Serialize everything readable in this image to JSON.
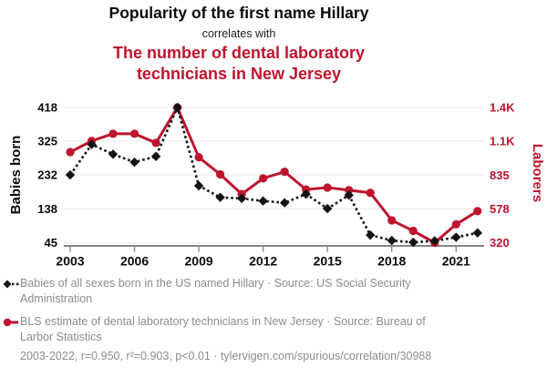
{
  "header": {
    "title_top": "Popularity of the first name Hillary",
    "connector": "correlates with",
    "title_bottom": "The number of dental laboratory technicians in New Jersey"
  },
  "colors": {
    "accent_red": "#be142d",
    "series_black": "#141414",
    "legend_gray": "#8c8c8c",
    "gridline": "#e8e8e8",
    "axis_line": "#3a3a3a",
    "tick_mark": "#8a8a8a"
  },
  "chart_data": {
    "type": "line",
    "title": "Popularity of the first name Hillary correlates with The number of dental laboratory technicians in New Jersey",
    "x": [
      2003,
      2004,
      2005,
      2006,
      2007,
      2008,
      2009,
      2010,
      2011,
      2012,
      2013,
      2014,
      2015,
      2016,
      2017,
      2018,
      2019,
      2020,
      2021,
      2022
    ],
    "series": [
      {
        "name": "Babies of all sexes born in the US named Hillary",
        "axis": "right2",
        "key": "hillary",
        "color": "#141414",
        "line_style": "dotted",
        "marker": "diamond",
        "values": [
          232,
          316,
          289,
          267,
          283,
          418,
          202,
          170,
          167,
          160,
          155,
          179,
          139,
          176,
          66,
          51,
          46,
          50,
          60,
          72
        ]
      },
      {
        "name": "BLS estimate of dental laboratory technicians in New Jersey",
        "axis": "right",
        "key": "technicians",
        "color": "#be142d",
        "line_style": "solid",
        "marker": "circle",
        "values": [
          1010,
          1095,
          1150,
          1150,
          1080,
          1350,
          970,
          840,
          690,
          810,
          860,
          725,
          740,
          720,
          700,
          490,
          410,
          320,
          460,
          560
        ]
      }
    ],
    "left_axis": {
      "label": "Babies born",
      "range": [
        45,
        418
      ],
      "ticks": [
        45,
        138,
        232,
        325,
        418
      ],
      "tick_labels": [
        "45",
        "138",
        "232",
        "325",
        "418"
      ]
    },
    "right_axis": {
      "label": "Laborers",
      "range": [
        320,
        1350
      ],
      "ticks": [
        320,
        577.5,
        835,
        1092.5,
        1350
      ],
      "tick_labels": [
        "320",
        "578",
        "835",
        "1.1K",
        "1.4K"
      ]
    },
    "x_axis": {
      "range": [
        2003,
        2022
      ],
      "ticks": [
        2003,
        2006,
        2009,
        2012,
        2015,
        2018,
        2021
      ],
      "tick_labels": [
        "2003",
        "2006",
        "2009",
        "2012",
        "2015",
        "2018",
        "2021"
      ]
    },
    "grid": "horizontal",
    "legend_position": "bottom"
  },
  "legend": {
    "items": [
      {
        "label": "Babies of all sexes born in the US named Hillary · Source: US Social Security Administration"
      },
      {
        "label": "BLS estimate of dental laboratory technicians in New Jersey · Source: Bureau of Larbor Statistics"
      }
    ]
  },
  "footer": {
    "text": "2003-2022, r=0.950, r²=0.903, p<0.01 · tylervigen.com/spurious/correlation/30988"
  }
}
